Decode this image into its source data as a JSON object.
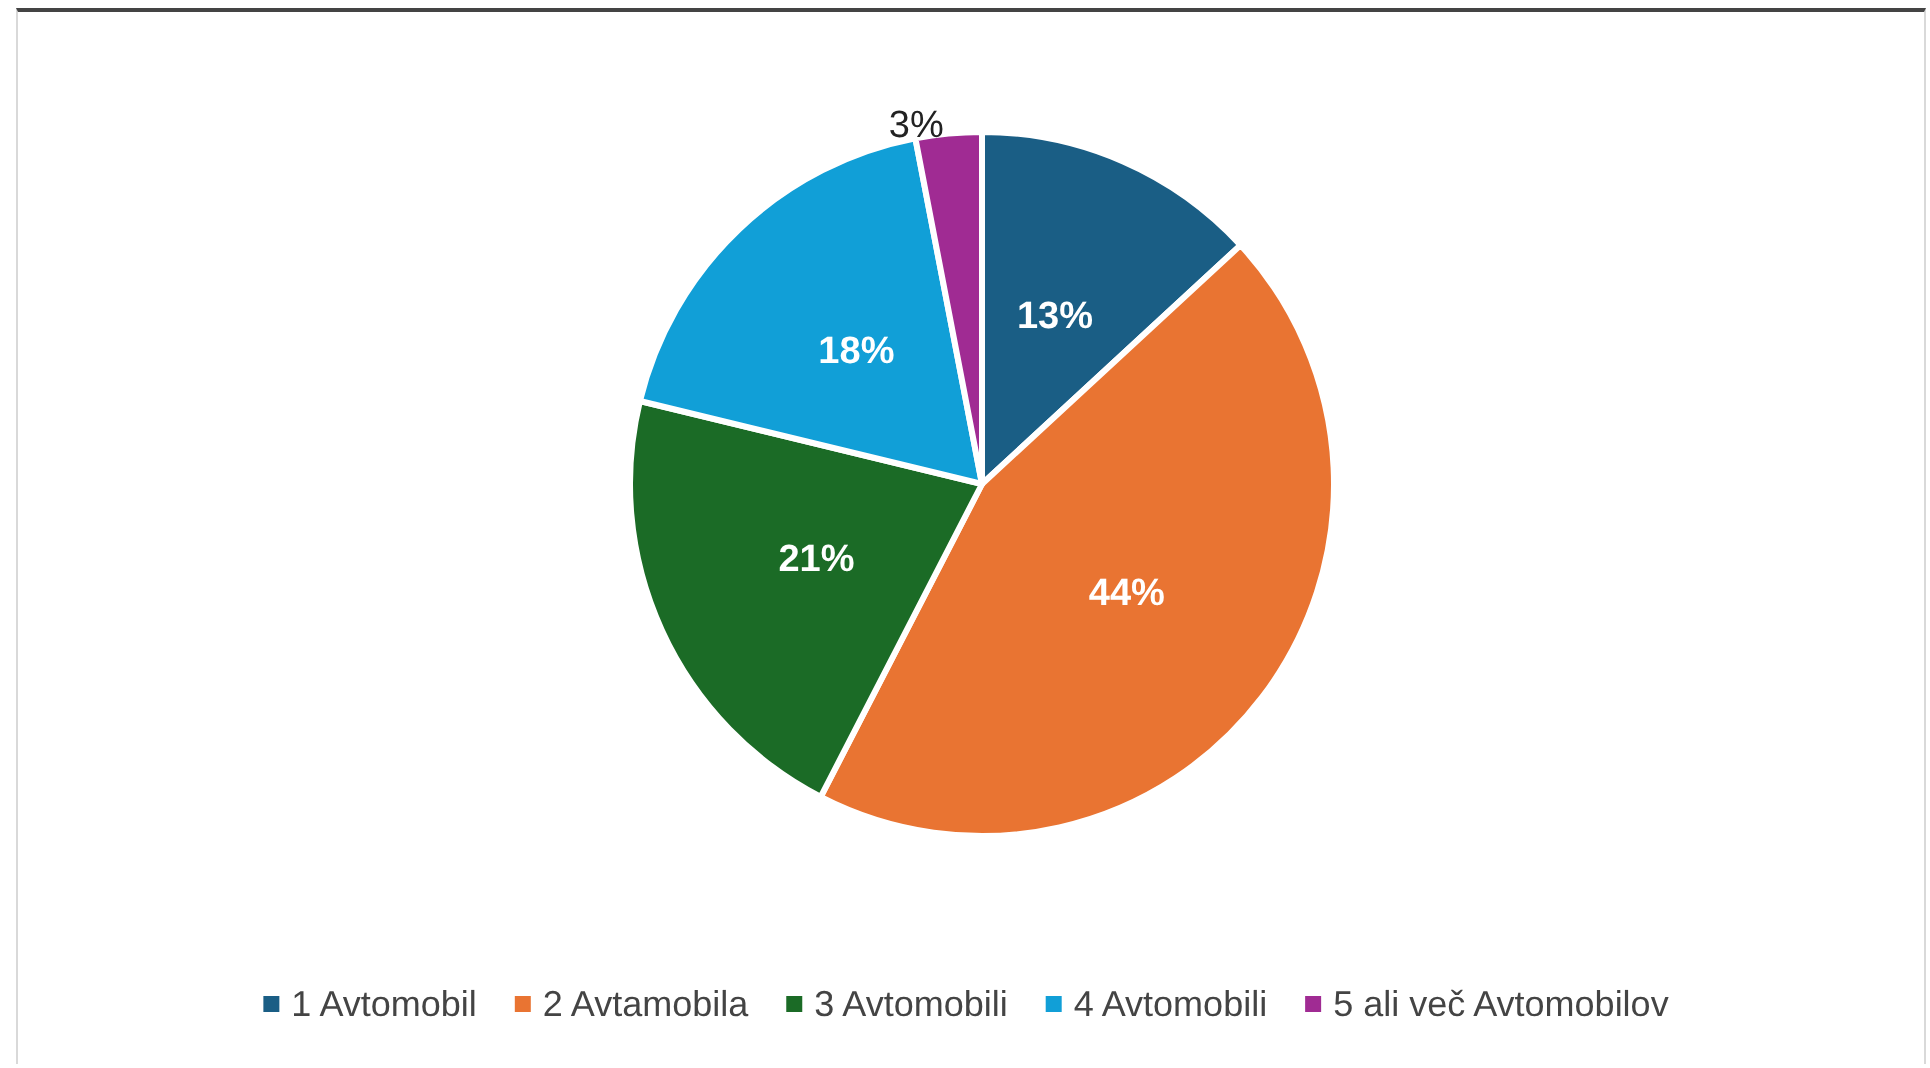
{
  "chart_data": {
    "type": "pie",
    "categories": [
      "1 Avtomobil",
      "2 Avtamobila",
      "3 Avtomobili",
      "4 Avtomobili",
      "5 ali več Avtomobilov"
    ],
    "values": [
      13,
      44,
      21,
      18,
      3
    ],
    "value_labels": [
      "13%",
      "44%",
      "21%",
      "18%",
      "3%"
    ],
    "colors": [
      "#1a5e85",
      "#e97432",
      "#1b6b26",
      "#119fd7",
      "#a02b93"
    ],
    "legend": "bottom"
  }
}
